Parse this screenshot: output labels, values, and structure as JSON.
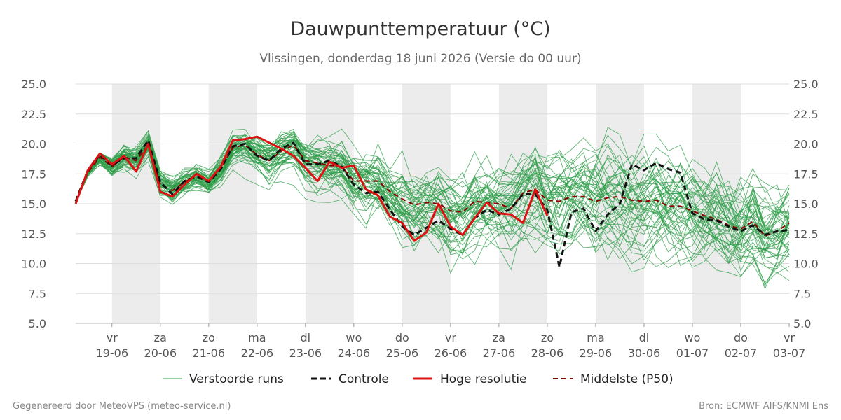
{
  "chart_data": {
    "type": "line",
    "title": "Dauwpunttemperatuur (°C)",
    "subtitle": "Vlissingen, donderdag 18 juni 2026 (Versie do 00 uur)",
    "ylim": [
      5.0,
      25.0
    ],
    "y_ticks": [
      "5.0",
      "7.5",
      "10.0",
      "12.5",
      "15.0",
      "17.5",
      "20.0",
      "22.5",
      "25.0"
    ],
    "x_ticks": [
      {
        "day": "vr",
        "date": "19-06"
      },
      {
        "day": "za",
        "date": "20-06"
      },
      {
        "day": "zo",
        "date": "21-06"
      },
      {
        "day": "ma",
        "date": "22-06"
      },
      {
        "day": "di",
        "date": "23-06"
      },
      {
        "day": "wo",
        "date": "24-06"
      },
      {
        "day": "do",
        "date": "25-06"
      },
      {
        "day": "vr",
        "date": "26-06"
      },
      {
        "day": "za",
        "date": "27-06"
      },
      {
        "day": "zo",
        "date": "28-06"
      },
      {
        "day": "ma",
        "date": "29-06"
      },
      {
        "day": "di",
        "date": "30-06"
      },
      {
        "day": "wo",
        "date": "01-07"
      },
      {
        "day": "do",
        "date": "02-07"
      },
      {
        "day": "vr",
        "date": "03-07"
      }
    ],
    "x_range_days": [
      -0.75,
      14.0
    ],
    "grid": true,
    "weekend_shading": true,
    "legend_position": "bottom",
    "colors": {
      "ensemble": "#2e9e48",
      "control": "#111111",
      "high_res": "#dd1111",
      "median": "#8b0000",
      "shade": "#ececec",
      "grid": "#dddddd"
    },
    "series": [
      {
        "name": "Controle",
        "style": "dashed",
        "x": [
          -0.75,
          -0.5,
          -0.25,
          0,
          0.25,
          0.5,
          0.75,
          1,
          1.25,
          1.5,
          1.75,
          2,
          2.25,
          2.5,
          2.75,
          3,
          3.25,
          3.5,
          3.75,
          4,
          4.25,
          4.5,
          4.75,
          5,
          5.25,
          5.5,
          5.75,
          6,
          6.25,
          6.5,
          6.75,
          7,
          7.25,
          7.5,
          7.75,
          8,
          8.25,
          8.5,
          8.75,
          9,
          9.25,
          9.5,
          9.75,
          10,
          10.25,
          10.5,
          10.75,
          11,
          11.25,
          11.5,
          11.75,
          12,
          12.25,
          12.5,
          12.75,
          13,
          13.25,
          13.5,
          13.75,
          14
        ],
        "values": [
          15.2,
          17.8,
          19.1,
          18.2,
          18.8,
          18.8,
          20.3,
          16.8,
          15.8,
          16.9,
          17.3,
          16.8,
          17.9,
          19.8,
          20.0,
          19.0,
          18.6,
          19.6,
          20.1,
          18.3,
          18.3,
          18.6,
          18.1,
          16.6,
          15.9,
          16.0,
          14.5,
          13.1,
          12.4,
          13.0,
          13.6,
          12.9,
          12.4,
          13.8,
          14.5,
          14.1,
          14.6,
          15.8,
          15.8,
          14.5,
          9.7,
          14.3,
          14.6,
          12.7,
          14.1,
          15.0,
          18.3,
          17.8,
          18.4,
          17.9,
          17.6,
          14.2,
          13.7,
          13.6,
          13.1,
          12.7,
          13.2,
          12.4,
          12.7,
          12.8
        ]
      },
      {
        "name": "Hoge resolutie",
        "style": "solid",
        "x": [
          -0.75,
          -0.5,
          -0.25,
          0,
          0.25,
          0.5,
          0.75,
          1,
          1.25,
          1.5,
          1.75,
          2,
          2.25,
          2.5,
          2.75,
          3,
          3.25,
          3.5,
          3.75,
          4,
          4.25,
          4.5,
          4.75,
          5,
          5.25,
          5.5,
          5.75,
          6,
          6.25,
          6.5,
          6.75,
          7,
          7.25,
          7.5,
          7.75,
          8,
          8.25,
          8.5,
          8.75,
          9
        ],
        "values": [
          15.0,
          17.8,
          19.2,
          18.3,
          19.0,
          17.7,
          20.0,
          16.0,
          15.6,
          16.6,
          17.5,
          16.9,
          18.1,
          20.3,
          20.4,
          20.6,
          20.1,
          19.6,
          19.0,
          18.0,
          16.9,
          18.5,
          18.0,
          18.2,
          16.2,
          15.7,
          13.9,
          13.4,
          11.9,
          12.6,
          15.0,
          13.1,
          12.4,
          13.8,
          15.1,
          14.2,
          14.1,
          13.4,
          16.2,
          14.0
        ]
      },
      {
        "name": "Middelste (P50)",
        "style": "dashed",
        "x": [
          -0.75,
          -0.5,
          -0.25,
          0,
          0.25,
          0.5,
          0.75,
          1,
          1.25,
          1.5,
          1.75,
          2,
          2.25,
          2.5,
          2.75,
          3,
          3.25,
          3.5,
          3.75,
          4,
          4.25,
          4.5,
          4.75,
          5,
          5.25,
          5.5,
          5.75,
          6,
          6.25,
          6.5,
          6.75,
          7,
          7.25,
          7.5,
          7.75,
          8,
          8.25,
          8.5,
          8.75,
          9,
          9.25,
          9.5,
          9.75,
          10,
          10.25,
          10.5,
          10.75,
          11,
          11.25,
          11.5,
          11.75,
          12,
          12.25,
          12.5,
          12.75,
          13,
          13.25,
          13.5,
          13.75,
          14
        ],
        "values": [
          15.1,
          17.6,
          18.9,
          18.1,
          18.9,
          18.6,
          19.9,
          16.6,
          16.1,
          16.8,
          17.4,
          16.8,
          17.9,
          19.7,
          19.9,
          19.1,
          18.6,
          19.4,
          19.9,
          18.6,
          18.4,
          18.2,
          18.1,
          16.9,
          16.9,
          16.9,
          16.0,
          15.4,
          14.9,
          15.1,
          15.0,
          14.4,
          14.3,
          15.2,
          15.1,
          15.0,
          14.6,
          15.9,
          16.2,
          15.3,
          15.2,
          15.6,
          15.6,
          15.2,
          15.5,
          15.6,
          15.3,
          15.2,
          15.3,
          14.8,
          14.8,
          14.4,
          14.0,
          13.7,
          13.2,
          12.9,
          13.5,
          12.3,
          12.7,
          13.4
        ]
      }
    ],
    "ensemble": {
      "name": "Verstoorde runs",
      "members": 50,
      "spread_by_day": [
        [
          -0.75,
          0.0
        ],
        [
          0,
          0.7
        ],
        [
          1,
          0.9
        ],
        [
          2,
          0.7
        ],
        [
          3,
          1.1
        ],
        [
          4,
          1.4
        ],
        [
          5,
          1.9
        ],
        [
          6,
          2.2
        ],
        [
          7,
          2.5
        ],
        [
          8,
          2.7
        ],
        [
          9,
          2.9
        ],
        [
          10,
          3.0
        ],
        [
          11,
          3.0
        ],
        [
          12,
          2.9
        ],
        [
          13,
          2.8
        ],
        [
          14,
          2.7
        ]
      ]
    },
    "legend": [
      "Verstoorde runs",
      "Controle",
      "Hoge resolutie",
      "Middelste (P50)"
    ]
  },
  "footer": {
    "left": "Gegenereerd door MeteoVPS (meteo-service.nl)",
    "right": "Bron: ECMWF AIFS/KNMI Ens"
  }
}
